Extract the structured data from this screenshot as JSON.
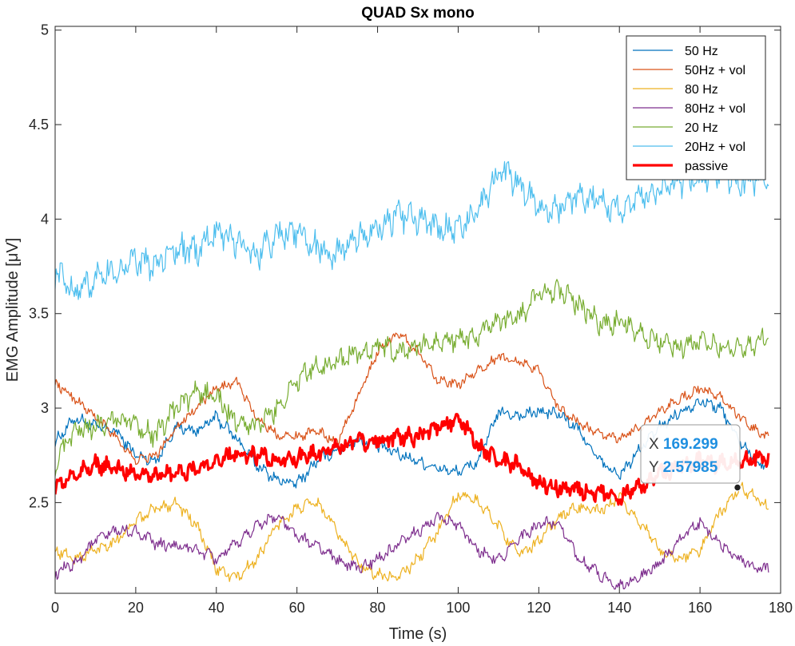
{
  "chart_data": {
    "type": "line",
    "title": "QUAD Sx mono",
    "xlabel": "Time (s)",
    "ylabel": "EMG Amplitude [μV]",
    "xlim": [
      0,
      180
    ],
    "ylim": [
      2.02,
      5.02
    ],
    "xticks": [
      0,
      20,
      40,
      60,
      80,
      100,
      120,
      140,
      160,
      180
    ],
    "yticks": [
      2.5,
      3,
      3.5,
      4,
      4.5,
      5
    ],
    "xtick_labels": [
      "0",
      "20",
      "40",
      "60",
      "80",
      "100",
      "120",
      "140",
      "160",
      "180"
    ],
    "ytick_labels": [
      "2.5",
      "3",
      "3.5",
      "4",
      "4.5",
      "5"
    ],
    "grid": false,
    "legend_position": "top-right",
    "series": [
      {
        "name": "50 Hz",
        "color": "#0072BD",
        "line_width": 1.2,
        "x": [
          0,
          5,
          10,
          15,
          20,
          25,
          30,
          35,
          40,
          45,
          50,
          55,
          60,
          65,
          70,
          75,
          80,
          85,
          90,
          95,
          100,
          105,
          110,
          115,
          120,
          125,
          130,
          135,
          140,
          145,
          150,
          155,
          160,
          165,
          170,
          175,
          177
        ],
        "values": [
          2.82,
          2.95,
          2.9,
          2.88,
          2.75,
          2.72,
          2.9,
          2.88,
          2.95,
          2.84,
          2.7,
          2.62,
          2.6,
          2.72,
          2.78,
          2.83,
          2.8,
          2.76,
          2.72,
          2.68,
          2.66,
          2.72,
          2.98,
          2.96,
          2.98,
          2.97,
          2.88,
          2.72,
          2.64,
          2.78,
          2.9,
          2.98,
          3.04,
          3.0,
          2.82,
          2.7,
          2.7
        ],
        "noise": 0.025
      },
      {
        "name": "50Hz + vol",
        "color": "#D95319",
        "line_width": 1.2,
        "x": [
          0,
          5,
          10,
          15,
          20,
          25,
          30,
          35,
          40,
          45,
          50,
          55,
          60,
          65,
          70,
          75,
          80,
          85,
          90,
          95,
          100,
          105,
          110,
          115,
          120,
          125,
          130,
          135,
          140,
          145,
          150,
          155,
          160,
          165,
          170,
          175,
          177
        ],
        "values": [
          3.13,
          3.05,
          2.95,
          2.85,
          2.72,
          2.75,
          2.9,
          3.0,
          3.1,
          3.14,
          2.95,
          2.86,
          2.85,
          2.88,
          2.82,
          3.05,
          3.3,
          3.4,
          3.3,
          3.15,
          3.12,
          3.2,
          3.27,
          3.25,
          3.2,
          3.0,
          2.92,
          2.86,
          2.84,
          2.9,
          2.98,
          3.05,
          3.1,
          3.06,
          2.95,
          2.86,
          2.86
        ],
        "noise": 0.02
      },
      {
        "name": "80 Hz",
        "color": "#EDB120",
        "line_width": 1.2,
        "x": [
          0,
          5,
          10,
          15,
          20,
          25,
          30,
          35,
          40,
          45,
          50,
          55,
          60,
          65,
          70,
          75,
          80,
          85,
          90,
          95,
          100,
          105,
          110,
          115,
          120,
          125,
          130,
          135,
          140,
          145,
          150,
          155,
          160,
          165,
          170,
          175,
          177
        ],
        "values": [
          2.25,
          2.2,
          2.25,
          2.3,
          2.4,
          2.47,
          2.5,
          2.38,
          2.15,
          2.1,
          2.2,
          2.38,
          2.47,
          2.5,
          2.35,
          2.18,
          2.12,
          2.1,
          2.2,
          2.35,
          2.55,
          2.5,
          2.38,
          2.22,
          2.3,
          2.42,
          2.48,
          2.45,
          2.52,
          2.4,
          2.25,
          2.2,
          2.25,
          2.45,
          2.58,
          2.52,
          2.46
        ],
        "noise": 0.025
      },
      {
        "name": "80Hz + vol",
        "color": "#7E2F8E",
        "line_width": 1.2,
        "x": [
          0,
          5,
          10,
          15,
          20,
          25,
          30,
          35,
          40,
          45,
          50,
          55,
          60,
          65,
          70,
          75,
          80,
          85,
          90,
          95,
          100,
          105,
          110,
          115,
          120,
          125,
          130,
          135,
          140,
          145,
          150,
          155,
          160,
          165,
          170,
          175,
          177
        ],
        "values": [
          2.12,
          2.18,
          2.3,
          2.35,
          2.35,
          2.28,
          2.27,
          2.25,
          2.2,
          2.28,
          2.38,
          2.43,
          2.32,
          2.27,
          2.2,
          2.15,
          2.2,
          2.27,
          2.35,
          2.42,
          2.38,
          2.25,
          2.2,
          2.3,
          2.38,
          2.4,
          2.2,
          2.12,
          2.06,
          2.1,
          2.18,
          2.3,
          2.4,
          2.28,
          2.2,
          2.15,
          2.16
        ],
        "noise": 0.025
      },
      {
        "name": "20 Hz",
        "color": "#77AC30",
        "line_width": 1.2,
        "x": [
          0,
          5,
          10,
          15,
          20,
          25,
          30,
          35,
          40,
          45,
          50,
          55,
          60,
          65,
          70,
          75,
          80,
          85,
          90,
          95,
          100,
          105,
          110,
          115,
          120,
          125,
          130,
          135,
          140,
          145,
          150,
          155,
          160,
          165,
          170,
          175,
          177
        ],
        "values": [
          2.7,
          2.88,
          2.9,
          2.95,
          2.92,
          2.85,
          3.0,
          3.08,
          3.06,
          2.92,
          2.9,
          3.0,
          3.15,
          3.22,
          3.25,
          3.3,
          3.32,
          3.3,
          3.32,
          3.35,
          3.36,
          3.38,
          3.45,
          3.48,
          3.6,
          3.62,
          3.55,
          3.45,
          3.45,
          3.4,
          3.35,
          3.32,
          3.35,
          3.33,
          3.3,
          3.35,
          3.38
        ],
        "noise": 0.045
      },
      {
        "name": "20Hz + vol",
        "color": "#4DBEEE",
        "line_width": 1.2,
        "x": [
          0,
          5,
          10,
          15,
          20,
          25,
          30,
          35,
          40,
          45,
          50,
          55,
          60,
          65,
          70,
          75,
          80,
          85,
          90,
          95,
          100,
          105,
          110,
          115,
          120,
          125,
          130,
          135,
          140,
          145,
          150,
          155,
          160,
          165,
          170,
          175,
          177
        ],
        "values": [
          3.72,
          3.62,
          3.68,
          3.72,
          3.78,
          3.75,
          3.85,
          3.82,
          3.95,
          3.88,
          3.8,
          3.92,
          3.92,
          3.85,
          3.82,
          3.9,
          3.95,
          4.02,
          4.0,
          3.95,
          3.95,
          4.05,
          4.25,
          4.2,
          4.05,
          4.05,
          4.12,
          4.1,
          4.05,
          4.12,
          4.15,
          4.2,
          4.22,
          4.25,
          4.2,
          4.22,
          4.22
        ],
        "noise": 0.06
      },
      {
        "name": "passive",
        "color": "#FF0000",
        "line_width": 3.2,
        "x": [
          0,
          5,
          10,
          15,
          20,
          25,
          30,
          35,
          40,
          45,
          50,
          55,
          60,
          65,
          70,
          75,
          80,
          85,
          90,
          95,
          100,
          105,
          110,
          115,
          120,
          125,
          130,
          135,
          140,
          145,
          150,
          155,
          160,
          165,
          170,
          175,
          177
        ],
        "values": [
          2.58,
          2.65,
          2.7,
          2.68,
          2.66,
          2.65,
          2.65,
          2.68,
          2.72,
          2.76,
          2.75,
          2.72,
          2.73,
          2.76,
          2.8,
          2.82,
          2.83,
          2.84,
          2.85,
          2.9,
          2.95,
          2.8,
          2.72,
          2.7,
          2.6,
          2.58,
          2.57,
          2.55,
          2.53,
          2.58,
          2.65,
          2.68,
          2.72,
          2.7,
          2.72,
          2.73,
          2.73
        ],
        "noise": 0.035
      }
    ],
    "datatip": {
      "x_label": "X",
      "y_label": "Y",
      "x_value": "169.299",
      "y_value": "2.57985",
      "x": 169.299,
      "y": 2.57985
    }
  }
}
